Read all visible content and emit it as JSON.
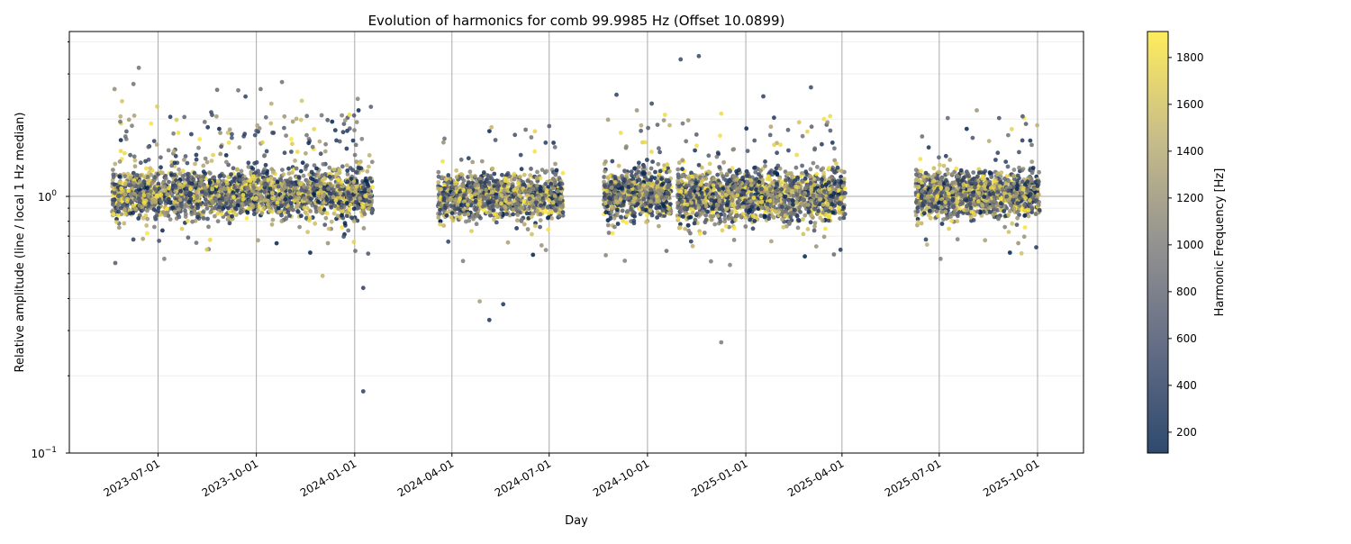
{
  "chart_data": {
    "type": "scatter",
    "title": "Evolution of harmonics for comb 99.9985 Hz (Offset 10.0899)",
    "xlabel": "Day",
    "ylabel": "Relative amplitude (line / local 1 Hz median)",
    "yscale": "log",
    "ylim": [
      0.1,
      4.39
    ],
    "xlim": [
      "2023-04-09",
      "2025-11-13"
    ],
    "x_ticks": [
      "2023-07-01",
      "2023-10-01",
      "2024-01-01",
      "2024-04-01",
      "2024-07-01",
      "2024-10-01",
      "2025-01-01",
      "2025-04-01",
      "2025-07-01",
      "2025-10-01"
    ],
    "y_ticks": [
      {
        "value": 0.1,
        "base": "10",
        "exp": "−1"
      },
      {
        "value": 1,
        "base": "10",
        "exp": "0"
      }
    ],
    "grid": true,
    "reference_line": 1,
    "colorbar": {
      "label": "Harmonic Frequency [Hz]",
      "colormap": "cividis",
      "range": [
        111,
        1911
      ],
      "ticks": [
        "200",
        "400",
        "600",
        "800",
        "1000",
        "1200",
        "1400",
        "1600",
        "1800"
      ],
      "stops": [
        "#00224e",
        "#414d6b",
        "#7c7b78",
        "#bcaf6f",
        "#fee838"
      ]
    },
    "segments": [
      {
        "start": "2023-05-19",
        "end": "2024-01-18",
        "center": 1.02,
        "log_sd": 0.045,
        "upper_tail": 0.06,
        "points": 2400
      },
      {
        "start": "2024-03-19",
        "end": "2024-07-14",
        "center": 1.0,
        "log_sd": 0.045,
        "upper_tail": 0.02,
        "points": 1100
      },
      {
        "start": "2024-08-21",
        "end": "2024-10-23",
        "center": 1.02,
        "log_sd": 0.045,
        "upper_tail": 0.03,
        "points": 700
      },
      {
        "start": "2024-10-29",
        "end": "2025-04-04",
        "center": 1.0,
        "log_sd": 0.05,
        "upper_tail": 0.03,
        "points": 1600
      },
      {
        "start": "2025-06-09",
        "end": "2025-10-03",
        "center": 1.02,
        "log_sd": 0.045,
        "upper_tail": 0.02,
        "points": 1200
      }
    ],
    "outliers": [
      {
        "date": "2023-05-22",
        "y": 0.55,
        "freq": 700
      },
      {
        "date": "2023-06-13",
        "y": 3.17,
        "freq": 900
      },
      {
        "date": "2023-06-08",
        "y": 2.74,
        "freq": 900
      },
      {
        "date": "2023-09-14",
        "y": 2.59,
        "freq": 900
      },
      {
        "date": "2023-10-05",
        "y": 2.62,
        "freq": 900
      },
      {
        "date": "2023-10-25",
        "y": 2.79,
        "freq": 900
      },
      {
        "date": "2023-12-02",
        "y": 0.49,
        "freq": 1500
      },
      {
        "date": "2023-12-25",
        "y": 1.8,
        "freq": 300
      },
      {
        "date": "2024-01-09",
        "y": 0.174,
        "freq": 400
      },
      {
        "date": "2024-01-09",
        "y": 0.44,
        "freq": 400
      },
      {
        "date": "2024-04-27",
        "y": 0.39,
        "freq": 1300
      },
      {
        "date": "2024-05-06",
        "y": 0.33,
        "freq": 300
      },
      {
        "date": "2024-05-08",
        "y": 1.86,
        "freq": 1500
      },
      {
        "date": "2024-05-19",
        "y": 0.38,
        "freq": 300
      },
      {
        "date": "2024-06-09",
        "y": 1.82,
        "freq": 800
      },
      {
        "date": "2024-08-23",
        "y": 0.59,
        "freq": 1100
      },
      {
        "date": "2024-09-02",
        "y": 2.49,
        "freq": 400
      },
      {
        "date": "2024-10-05",
        "y": 2.3,
        "freq": 500
      },
      {
        "date": "2024-11-01",
        "y": 3.42,
        "freq": 500
      },
      {
        "date": "2024-11-18",
        "y": 3.52,
        "freq": 500
      },
      {
        "date": "2024-12-09",
        "y": 0.27,
        "freq": 1000
      },
      {
        "date": "2024-12-09",
        "y": 2.1,
        "freq": 1800
      },
      {
        "date": "2025-03-03",
        "y": 2.66,
        "freq": 500
      },
      {
        "date": "2025-07-09",
        "y": 2.02,
        "freq": 800
      },
      {
        "date": "2025-08-26",
        "y": 2.02,
        "freq": 600
      },
      {
        "date": "2025-09-16",
        "y": 0.6,
        "freq": 1600
      },
      {
        "date": "2025-09-17",
        "y": 2.05,
        "freq": 600
      }
    ]
  }
}
